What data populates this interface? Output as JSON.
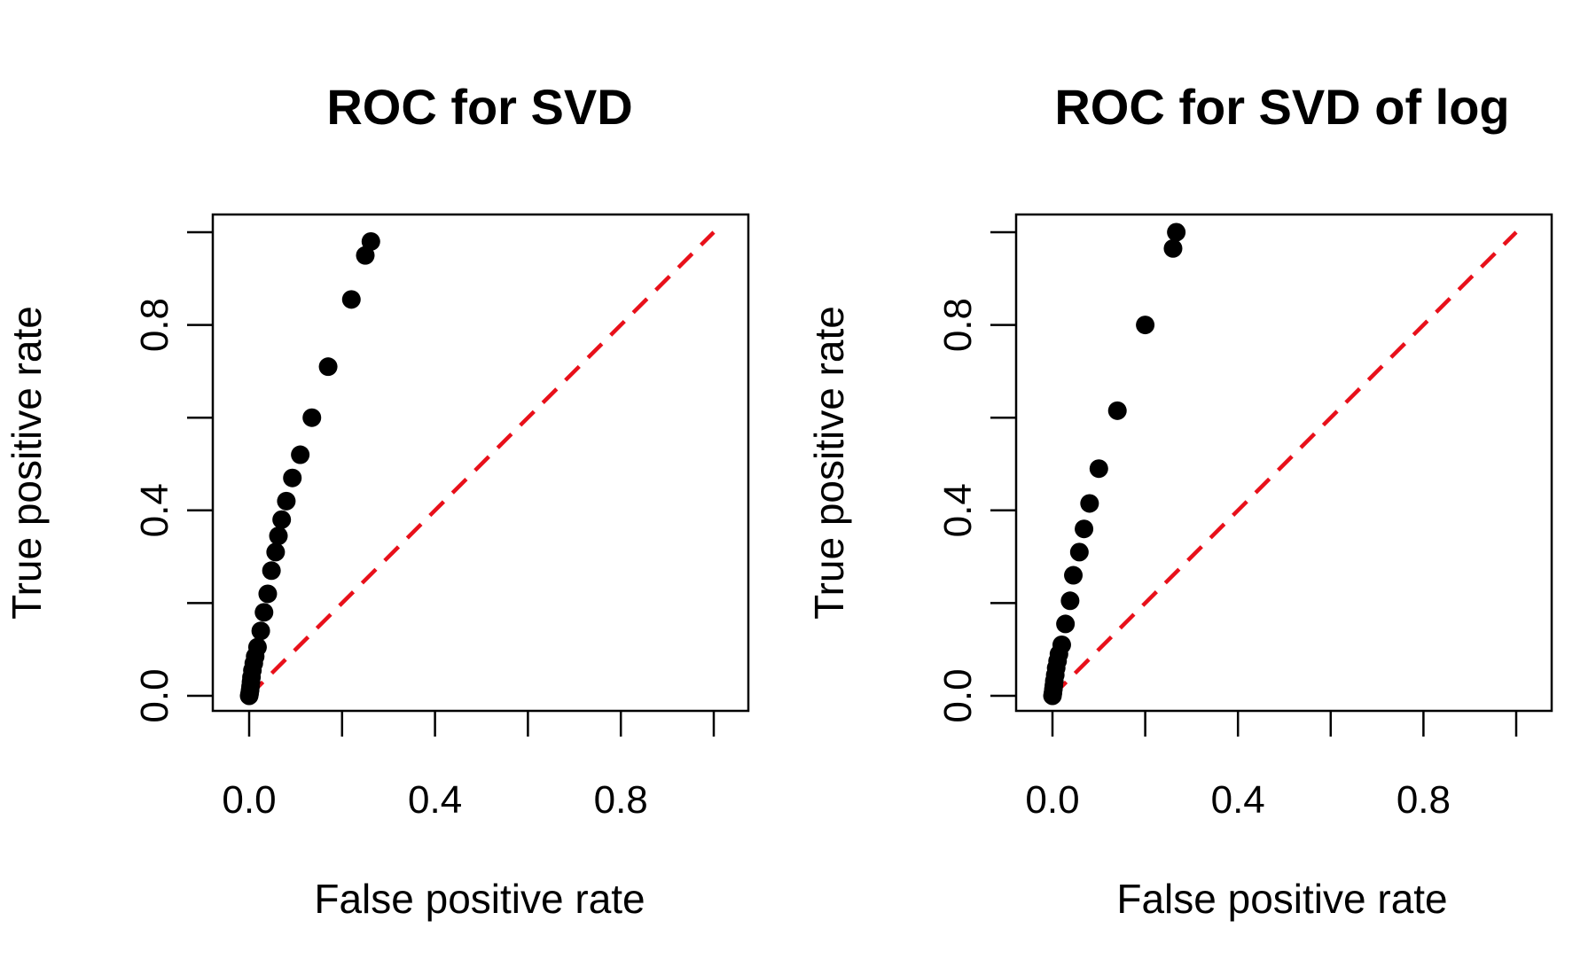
{
  "chart_data": [
    {
      "type": "scatter",
      "title": "ROC for SVD",
      "xlabel": "False positive rate",
      "ylabel": "True positive rate",
      "xlim": [
        0,
        1
      ],
      "ylim": [
        0,
        1
      ],
      "x_ticks": [
        "0.0",
        "0.4",
        "0.8"
      ],
      "y_ticks": [
        "0.0",
        "0.4",
        "0.8"
      ],
      "points": [
        {
          "x": 0.0,
          "y": 0.0
        },
        {
          "x": 0.001,
          "y": 0.005
        },
        {
          "x": 0.002,
          "y": 0.012
        },
        {
          "x": 0.003,
          "y": 0.02
        },
        {
          "x": 0.004,
          "y": 0.03
        },
        {
          "x": 0.005,
          "y": 0.04
        },
        {
          "x": 0.007,
          "y": 0.055
        },
        {
          "x": 0.01,
          "y": 0.07
        },
        {
          "x": 0.013,
          "y": 0.085
        },
        {
          "x": 0.018,
          "y": 0.105
        },
        {
          "x": 0.025,
          "y": 0.14
        },
        {
          "x": 0.032,
          "y": 0.18
        },
        {
          "x": 0.04,
          "y": 0.22
        },
        {
          "x": 0.048,
          "y": 0.27
        },
        {
          "x": 0.057,
          "y": 0.31
        },
        {
          "x": 0.063,
          "y": 0.345
        },
        {
          "x": 0.07,
          "y": 0.38
        },
        {
          "x": 0.08,
          "y": 0.42
        },
        {
          "x": 0.093,
          "y": 0.47
        },
        {
          "x": 0.11,
          "y": 0.52
        },
        {
          "x": 0.135,
          "y": 0.6
        },
        {
          "x": 0.17,
          "y": 0.71
        },
        {
          "x": 0.22,
          "y": 0.855
        },
        {
          "x": 0.25,
          "y": 0.95
        },
        {
          "x": 0.262,
          "y": 0.98
        }
      ],
      "reference_line": {
        "from": [
          0,
          0
        ],
        "to": [
          1,
          1
        ],
        "color": "#e8101a",
        "style": "dashed"
      },
      "point_color": "#000000"
    },
    {
      "type": "scatter",
      "title": "ROC for SVD of log",
      "xlabel": "False positive rate",
      "ylabel": "True positive rate",
      "xlim": [
        0,
        1
      ],
      "ylim": [
        0,
        1
      ],
      "x_ticks": [
        "0.0",
        "0.4",
        "0.8"
      ],
      "y_ticks": [
        "0.0",
        "0.4",
        "0.8"
      ],
      "points": [
        {
          "x": 0.0,
          "y": 0.0
        },
        {
          "x": 0.001,
          "y": 0.006
        },
        {
          "x": 0.002,
          "y": 0.014
        },
        {
          "x": 0.003,
          "y": 0.022
        },
        {
          "x": 0.004,
          "y": 0.032
        },
        {
          "x": 0.006,
          "y": 0.045
        },
        {
          "x": 0.008,
          "y": 0.06
        },
        {
          "x": 0.011,
          "y": 0.075
        },
        {
          "x": 0.014,
          "y": 0.09
        },
        {
          "x": 0.02,
          "y": 0.11
        },
        {
          "x": 0.028,
          "y": 0.155
        },
        {
          "x": 0.038,
          "y": 0.205
        },
        {
          "x": 0.045,
          "y": 0.26
        },
        {
          "x": 0.058,
          "y": 0.31
        },
        {
          "x": 0.068,
          "y": 0.36
        },
        {
          "x": 0.08,
          "y": 0.415
        },
        {
          "x": 0.1,
          "y": 0.49
        },
        {
          "x": 0.14,
          "y": 0.615
        },
        {
          "x": 0.2,
          "y": 0.8
        },
        {
          "x": 0.26,
          "y": 0.965
        },
        {
          "x": 0.267,
          "y": 1.0
        }
      ],
      "reference_line": {
        "from": [
          0,
          0
        ],
        "to": [
          1,
          1
        ],
        "color": "#e8101a",
        "style": "dashed"
      },
      "point_color": "#000000"
    }
  ]
}
